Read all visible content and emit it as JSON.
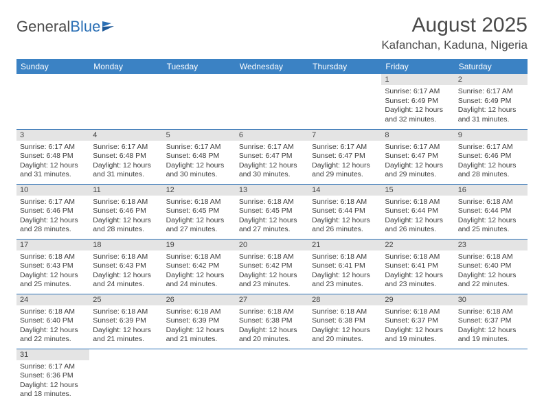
{
  "logo": {
    "text1": "General",
    "text2": "Blue"
  },
  "title": "August 2025",
  "location": "Kafanchan, Kaduna, Nigeria",
  "colors": {
    "header_bg": "#3b82c4",
    "header_fg": "#ffffff",
    "row_border": "#2a6fb5",
    "daynum_bg": "#e4e4e4",
    "text": "#3b3b3b"
  },
  "dayHeaders": [
    "Sunday",
    "Monday",
    "Tuesday",
    "Wednesday",
    "Thursday",
    "Friday",
    "Saturday"
  ],
  "weeks": [
    [
      null,
      null,
      null,
      null,
      null,
      {
        "n": "1",
        "sr": "6:17 AM",
        "ss": "6:49 PM",
        "dl": "12 hours and 32 minutes."
      },
      {
        "n": "2",
        "sr": "6:17 AM",
        "ss": "6:49 PM",
        "dl": "12 hours and 31 minutes."
      }
    ],
    [
      {
        "n": "3",
        "sr": "6:17 AM",
        "ss": "6:48 PM",
        "dl": "12 hours and 31 minutes."
      },
      {
        "n": "4",
        "sr": "6:17 AM",
        "ss": "6:48 PM",
        "dl": "12 hours and 31 minutes."
      },
      {
        "n": "5",
        "sr": "6:17 AM",
        "ss": "6:48 PM",
        "dl": "12 hours and 30 minutes."
      },
      {
        "n": "6",
        "sr": "6:17 AM",
        "ss": "6:47 PM",
        "dl": "12 hours and 30 minutes."
      },
      {
        "n": "7",
        "sr": "6:17 AM",
        "ss": "6:47 PM",
        "dl": "12 hours and 29 minutes."
      },
      {
        "n": "8",
        "sr": "6:17 AM",
        "ss": "6:47 PM",
        "dl": "12 hours and 29 minutes."
      },
      {
        "n": "9",
        "sr": "6:17 AM",
        "ss": "6:46 PM",
        "dl": "12 hours and 28 minutes."
      }
    ],
    [
      {
        "n": "10",
        "sr": "6:17 AM",
        "ss": "6:46 PM",
        "dl": "12 hours and 28 minutes."
      },
      {
        "n": "11",
        "sr": "6:18 AM",
        "ss": "6:46 PM",
        "dl": "12 hours and 28 minutes."
      },
      {
        "n": "12",
        "sr": "6:18 AM",
        "ss": "6:45 PM",
        "dl": "12 hours and 27 minutes."
      },
      {
        "n": "13",
        "sr": "6:18 AM",
        "ss": "6:45 PM",
        "dl": "12 hours and 27 minutes."
      },
      {
        "n": "14",
        "sr": "6:18 AM",
        "ss": "6:44 PM",
        "dl": "12 hours and 26 minutes."
      },
      {
        "n": "15",
        "sr": "6:18 AM",
        "ss": "6:44 PM",
        "dl": "12 hours and 26 minutes."
      },
      {
        "n": "16",
        "sr": "6:18 AM",
        "ss": "6:44 PM",
        "dl": "12 hours and 25 minutes."
      }
    ],
    [
      {
        "n": "17",
        "sr": "6:18 AM",
        "ss": "6:43 PM",
        "dl": "12 hours and 25 minutes."
      },
      {
        "n": "18",
        "sr": "6:18 AM",
        "ss": "6:43 PM",
        "dl": "12 hours and 24 minutes."
      },
      {
        "n": "19",
        "sr": "6:18 AM",
        "ss": "6:42 PM",
        "dl": "12 hours and 24 minutes."
      },
      {
        "n": "20",
        "sr": "6:18 AM",
        "ss": "6:42 PM",
        "dl": "12 hours and 23 minutes."
      },
      {
        "n": "21",
        "sr": "6:18 AM",
        "ss": "6:41 PM",
        "dl": "12 hours and 23 minutes."
      },
      {
        "n": "22",
        "sr": "6:18 AM",
        "ss": "6:41 PM",
        "dl": "12 hours and 23 minutes."
      },
      {
        "n": "23",
        "sr": "6:18 AM",
        "ss": "6:40 PM",
        "dl": "12 hours and 22 minutes."
      }
    ],
    [
      {
        "n": "24",
        "sr": "6:18 AM",
        "ss": "6:40 PM",
        "dl": "12 hours and 22 minutes."
      },
      {
        "n": "25",
        "sr": "6:18 AM",
        "ss": "6:39 PM",
        "dl": "12 hours and 21 minutes."
      },
      {
        "n": "26",
        "sr": "6:18 AM",
        "ss": "6:39 PM",
        "dl": "12 hours and 21 minutes."
      },
      {
        "n": "27",
        "sr": "6:18 AM",
        "ss": "6:38 PM",
        "dl": "12 hours and 20 minutes."
      },
      {
        "n": "28",
        "sr": "6:18 AM",
        "ss": "6:38 PM",
        "dl": "12 hours and 20 minutes."
      },
      {
        "n": "29",
        "sr": "6:18 AM",
        "ss": "6:37 PM",
        "dl": "12 hours and 19 minutes."
      },
      {
        "n": "30",
        "sr": "6:18 AM",
        "ss": "6:37 PM",
        "dl": "12 hours and 19 minutes."
      }
    ],
    [
      {
        "n": "31",
        "sr": "6:17 AM",
        "ss": "6:36 PM",
        "dl": "12 hours and 18 minutes."
      },
      null,
      null,
      null,
      null,
      null,
      null
    ]
  ],
  "labels": {
    "sunrise": "Sunrise:",
    "sunset": "Sunset:",
    "daylight": "Daylight:"
  }
}
